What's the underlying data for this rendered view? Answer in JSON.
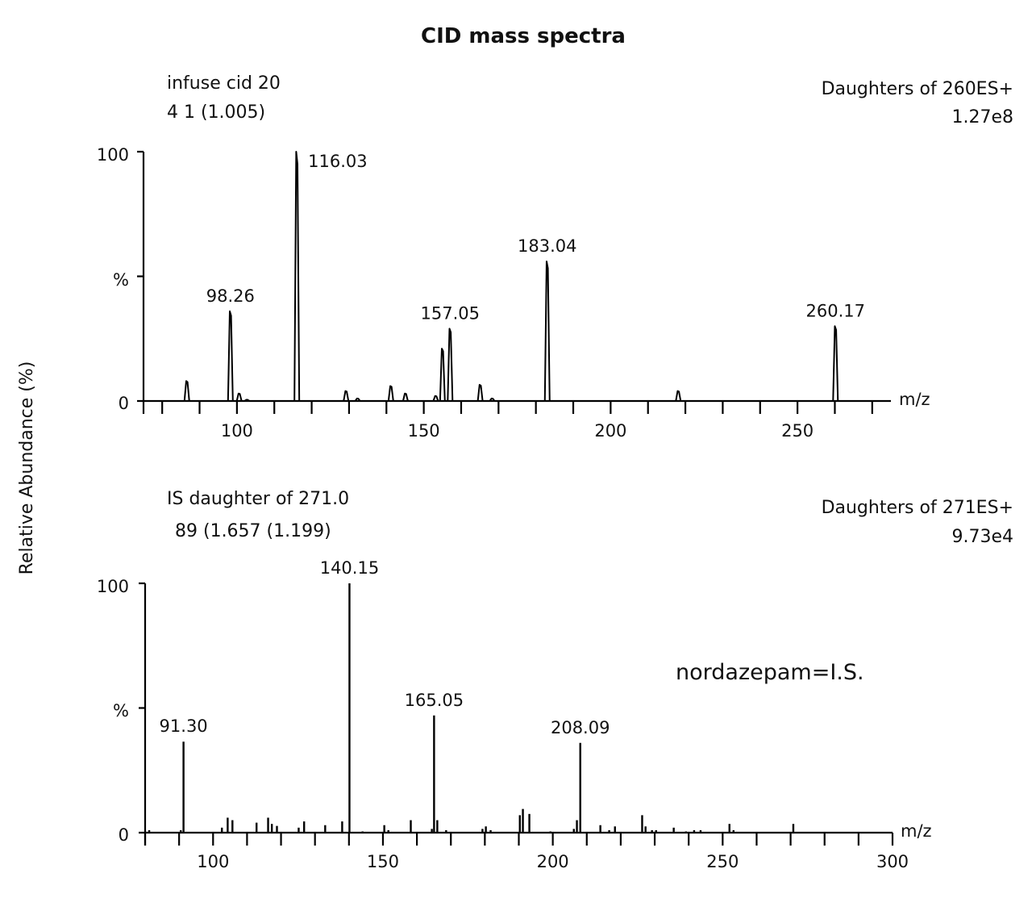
{
  "chart_data": [
    {
      "type": "line",
      "mode": "profile",
      "title": "CID mass spectra",
      "header_left": [
        "infuse cid 20",
        "4 1 (1.005)"
      ],
      "header_right": [
        "Daughters of 260ES+",
        "1.27e8"
      ],
      "xlabel": "m/z",
      "ylabel": "Relative Abundance (%)",
      "xlim": [
        75,
        275
      ],
      "ylim": [
        0,
        100
      ],
      "xticks": [
        100,
        150,
        200,
        250
      ],
      "xtick_labels": [
        "100",
        "150",
        "200",
        "250"
      ],
      "minor_tick_step": 10,
      "ytick_labels": [
        "100",
        "%",
        "0"
      ],
      "peaks": [
        {
          "mz": 86.6,
          "abundance": 8
        },
        {
          "mz": 98.26,
          "abundance": 36,
          "label": "98.26"
        },
        {
          "mz": 100.6,
          "abundance": 3
        },
        {
          "mz": 102.7,
          "abundance": 0.5
        },
        {
          "mz": 116.03,
          "abundance": 100,
          "label": "116.03"
        },
        {
          "mz": 129.2,
          "abundance": 4
        },
        {
          "mz": 132.3,
          "abundance": 1
        },
        {
          "mz": 141.2,
          "abundance": 6
        },
        {
          "mz": 145.1,
          "abundance": 3
        },
        {
          "mz": 153.2,
          "abundance": 2
        },
        {
          "mz": 155.0,
          "abundance": 21
        },
        {
          "mz": 157.05,
          "abundance": 29,
          "label": "157.05"
        },
        {
          "mz": 165.1,
          "abundance": 6.5
        },
        {
          "mz": 168.3,
          "abundance": 1
        },
        {
          "mz": 183.04,
          "abundance": 56,
          "label": "183.04"
        },
        {
          "mz": 218.1,
          "abundance": 4
        },
        {
          "mz": 260.17,
          "abundance": 30,
          "label": "260.17"
        }
      ]
    },
    {
      "type": "bar",
      "mode": "centroid",
      "header_left": [
        "IS daughter of 271.0",
        "89 (1.657 (1.199)"
      ],
      "header_right": [
        "Daughters of 271ES+",
        "9.73e4"
      ],
      "annotation": "nordazepam=I.S.",
      "xlabel": "m/z",
      "xlim": [
        80,
        300
      ],
      "ylim": [
        0,
        100
      ],
      "xticks": [
        100,
        150,
        200,
        250,
        300
      ],
      "xtick_labels": [
        "100",
        "150",
        "200",
        "250",
        "300"
      ],
      "minor_tick_step": 10,
      "ytick_labels": [
        "100",
        "%",
        "0"
      ],
      "peaks": [
        {
          "mz": 81.2,
          "abundance": 1
        },
        {
          "mz": 90.5,
          "abundance": 1
        },
        {
          "mz": 91.3,
          "abundance": 36.5,
          "label": "91.30"
        },
        {
          "mz": 102.6,
          "abundance": 2
        },
        {
          "mz": 104.3,
          "abundance": 6
        },
        {
          "mz": 105.7,
          "abundance": 5
        },
        {
          "mz": 112.8,
          "abundance": 4
        },
        {
          "mz": 116.2,
          "abundance": 6
        },
        {
          "mz": 117.3,
          "abundance": 3.5
        },
        {
          "mz": 118.8,
          "abundance": 2.7
        },
        {
          "mz": 125.2,
          "abundance": 2
        },
        {
          "mz": 126.8,
          "abundance": 4.5
        },
        {
          "mz": 133.0,
          "abundance": 3
        },
        {
          "mz": 138.0,
          "abundance": 4.5
        },
        {
          "mz": 140.15,
          "abundance": 100,
          "label": "140.15"
        },
        {
          "mz": 144.0,
          "abundance": 0.5
        },
        {
          "mz": 150.4,
          "abundance": 3
        },
        {
          "mz": 151.6,
          "abundance": 1
        },
        {
          "mz": 158.2,
          "abundance": 5
        },
        {
          "mz": 164.4,
          "abundance": 1.5
        },
        {
          "mz": 165.05,
          "abundance": 47,
          "label": "165.05"
        },
        {
          "mz": 166.0,
          "abundance": 5
        },
        {
          "mz": 168.6,
          "abundance": 1
        },
        {
          "mz": 179.3,
          "abundance": 1.5
        },
        {
          "mz": 180.3,
          "abundance": 2.5
        },
        {
          "mz": 181.7,
          "abundance": 1
        },
        {
          "mz": 190.3,
          "abundance": 7
        },
        {
          "mz": 191.2,
          "abundance": 9.5
        },
        {
          "mz": 193.1,
          "abundance": 7.5
        },
        {
          "mz": 199.3,
          "abundance": 0.5
        },
        {
          "mz": 206.2,
          "abundance": 1.5
        },
        {
          "mz": 207.1,
          "abundance": 5
        },
        {
          "mz": 208.09,
          "abundance": 36,
          "label": "208.09"
        },
        {
          "mz": 214.0,
          "abundance": 3
        },
        {
          "mz": 216.6,
          "abundance": 1
        },
        {
          "mz": 218.3,
          "abundance": 2.5
        },
        {
          "mz": 226.3,
          "abundance": 7
        },
        {
          "mz": 227.3,
          "abundance": 2.5
        },
        {
          "mz": 229.2,
          "abundance": 1
        },
        {
          "mz": 230.4,
          "abundance": 1
        },
        {
          "mz": 235.6,
          "abundance": 2
        },
        {
          "mz": 239.2,
          "abundance": 0.5
        },
        {
          "mz": 241.6,
          "abundance": 1
        },
        {
          "mz": 243.5,
          "abundance": 1
        },
        {
          "mz": 252.0,
          "abundance": 3.5
        },
        {
          "mz": 253.2,
          "abundance": 1
        },
        {
          "mz": 270.8,
          "abundance": 3.5
        }
      ]
    }
  ]
}
